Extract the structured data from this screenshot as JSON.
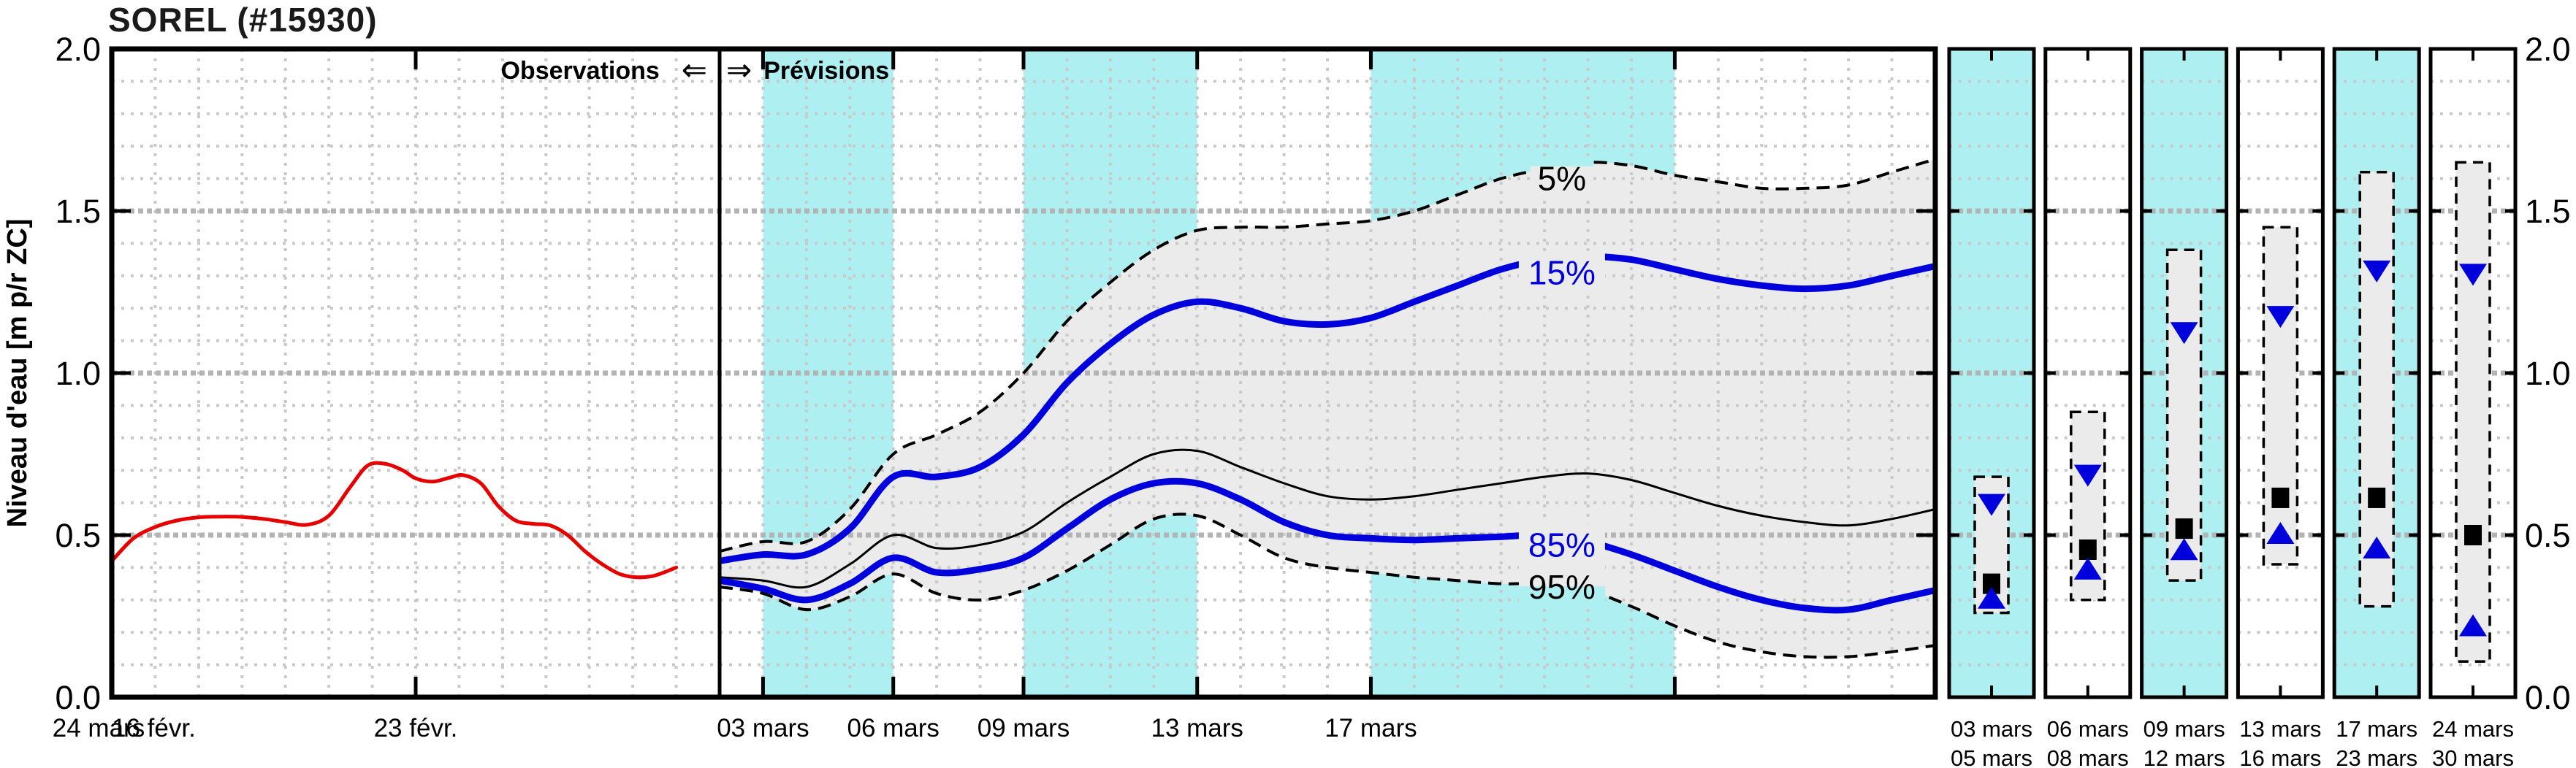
{
  "title": "SOREL (#15930)",
  "annotations": {
    "observations_label": "Observations",
    "previsions_label": "Prévisions",
    "arrow_left": "⇐",
    "arrow_right": "⇒"
  },
  "chart_data": {
    "type": "line",
    "title": "SOREL (#15930)",
    "ylabel": "Niveau d'eau [m p/r ZC]",
    "ylim": [
      0.0,
      2.0
    ],
    "y_major_ticks": [
      {
        "value": 2.0,
        "label": "2.0"
      },
      {
        "value": 1.5,
        "label": "1.5"
      },
      {
        "value": 1.0,
        "label": "1.0"
      },
      {
        "value": 0.5,
        "label": "0.5"
      },
      {
        "value": 0.0,
        "label": "0.0"
      }
    ],
    "y_minor_step": 0.1,
    "x_axis_days_total": 42,
    "x_ticks": [
      {
        "day": 0,
        "label": "16 févr."
      },
      {
        "day": 7,
        "label": "23 févr."
      },
      {
        "day": 15,
        "label": "03 mars"
      },
      {
        "day": 18,
        "label": "06 mars"
      },
      {
        "day": 21,
        "label": "09 mars"
      },
      {
        "day": 25,
        "label": "13 mars"
      },
      {
        "day": 29,
        "label": "17 mars"
      },
      {
        "day": 36,
        "label": "24 mars"
      }
    ],
    "divider_day": 14,
    "highlight_bands_days": [
      [
        15,
        18
      ],
      [
        21,
        25
      ],
      [
        29,
        36
      ]
    ],
    "observations": {
      "name": "observations",
      "x_days": [
        0,
        0.5,
        1,
        1.5,
        2,
        2.5,
        3,
        3.5,
        4,
        4.5,
        5,
        5.5,
        5.9,
        6.3,
        6.7,
        7,
        7.4,
        7.8,
        8.1,
        8.5,
        8.9,
        9.3,
        9.7,
        10.1,
        10.5,
        10.9,
        11.3,
        11.7,
        12.1,
        12.5,
        13
      ],
      "values": [
        0.42,
        0.49,
        0.525,
        0.545,
        0.555,
        0.557,
        0.556,
        0.55,
        0.54,
        0.532,
        0.56,
        0.65,
        0.715,
        0.72,
        0.7,
        0.675,
        0.665,
        0.678,
        0.685,
        0.66,
        0.59,
        0.545,
        0.535,
        0.53,
        0.5,
        0.45,
        0.41,
        0.38,
        0.37,
        0.375,
        0.4
      ]
    },
    "forecast": {
      "start_day": 14,
      "series": [
        {
          "name": "5%",
          "style": "dashed",
          "values": [
            0.45,
            0.48,
            0.48,
            0.58,
            0.75,
            0.81,
            0.88,
            1.0,
            1.16,
            1.28,
            1.38,
            1.44,
            1.45,
            1.45,
            1.46,
            1.47,
            1.5,
            1.55,
            1.6,
            1.63,
            1.65,
            1.64,
            1.61,
            1.59,
            1.57,
            1.57,
            1.58,
            1.62,
            1.66
          ]
        },
        {
          "name": "15%",
          "style": "solid-thick",
          "values": [
            0.42,
            0.44,
            0.44,
            0.52,
            0.68,
            0.68,
            0.71,
            0.81,
            0.97,
            1.09,
            1.18,
            1.22,
            1.2,
            1.16,
            1.15,
            1.17,
            1.22,
            1.27,
            1.32,
            1.35,
            1.36,
            1.35,
            1.32,
            1.29,
            1.27,
            1.26,
            1.27,
            1.3,
            1.33
          ]
        },
        {
          "name": "médiane",
          "style": "solid-thin",
          "values": [
            0.37,
            0.36,
            0.34,
            0.41,
            0.5,
            0.46,
            0.47,
            0.51,
            0.6,
            0.68,
            0.75,
            0.76,
            0.71,
            0.66,
            0.62,
            0.61,
            0.62,
            0.64,
            0.66,
            0.68,
            0.69,
            0.67,
            0.63,
            0.59,
            0.56,
            0.54,
            0.53,
            0.55,
            0.58
          ]
        },
        {
          "name": "85%",
          "style": "solid-thick",
          "values": [
            0.36,
            0.335,
            0.3,
            0.35,
            0.43,
            0.385,
            0.395,
            0.43,
            0.52,
            0.61,
            0.66,
            0.66,
            0.61,
            0.54,
            0.5,
            0.49,
            0.485,
            0.49,
            0.495,
            0.5,
            0.48,
            0.44,
            0.39,
            0.34,
            0.3,
            0.275,
            0.27,
            0.3,
            0.33
          ]
        },
        {
          "name": "95%",
          "style": "dashed",
          "values": [
            0.34,
            0.32,
            0.27,
            0.31,
            0.38,
            0.32,
            0.3,
            0.33,
            0.39,
            0.47,
            0.55,
            0.56,
            0.5,
            0.43,
            0.4,
            0.385,
            0.37,
            0.36,
            0.35,
            0.35,
            0.33,
            0.28,
            0.22,
            0.17,
            0.14,
            0.125,
            0.125,
            0.14,
            0.16
          ]
        }
      ],
      "curve_labels": [
        {
          "text": "5%",
          "day": 33.4,
          "value": 1.6,
          "color": "black"
        },
        {
          "text": "15%",
          "day": 33.4,
          "value": 1.31,
          "color": "blue"
        },
        {
          "text": "85%",
          "day": 33.4,
          "value": 0.47,
          "color": "blue"
        },
        {
          "text": "95%",
          "day": 33.4,
          "value": 0.34,
          "color": "black"
        }
      ]
    },
    "summary_boxes": [
      {
        "label_start": "03 mars",
        "label_end": "05 mars",
        "highlighted": true,
        "p95": 0.26,
        "p05": 0.68,
        "p15": 0.6,
        "median": 0.35,
        "p85": 0.3
      },
      {
        "label_start": "06 mars",
        "label_end": "08 mars",
        "highlighted": false,
        "p95": 0.3,
        "p05": 0.88,
        "p15": 0.69,
        "median": 0.455,
        "p85": 0.39
      },
      {
        "label_start": "09 mars",
        "label_end": "12 mars",
        "highlighted": true,
        "p95": 0.36,
        "p05": 1.38,
        "p15": 1.13,
        "median": 0.52,
        "p85": 0.45
      },
      {
        "label_start": "13 mars",
        "label_end": "16 mars",
        "highlighted": false,
        "p95": 0.41,
        "p05": 1.45,
        "p15": 1.18,
        "median": 0.615,
        "p85": 0.5
      },
      {
        "label_start": "17 mars",
        "label_end": "23 mars",
        "highlighted": true,
        "p95": 0.28,
        "p05": 1.62,
        "p15": 1.32,
        "median": 0.615,
        "p85": 0.455
      },
      {
        "label_start": "24 mars",
        "label_end": "30 mars",
        "highlighted": false,
        "p95": 0.11,
        "p05": 1.65,
        "p15": 1.31,
        "median": 0.5,
        "p85": 0.215
      }
    ],
    "colors": {
      "observed": "#e60000",
      "percentile_blue": "#0000dd",
      "median_black": "#000000",
      "band_fill": "#ebebeb",
      "highlight_cyan": "#aeeff2",
      "grid_major": "#b3b3b3",
      "grid_minor": "#c9c9c9",
      "axis": "#000000"
    },
    "legend_position": "none",
    "grid": true
  }
}
